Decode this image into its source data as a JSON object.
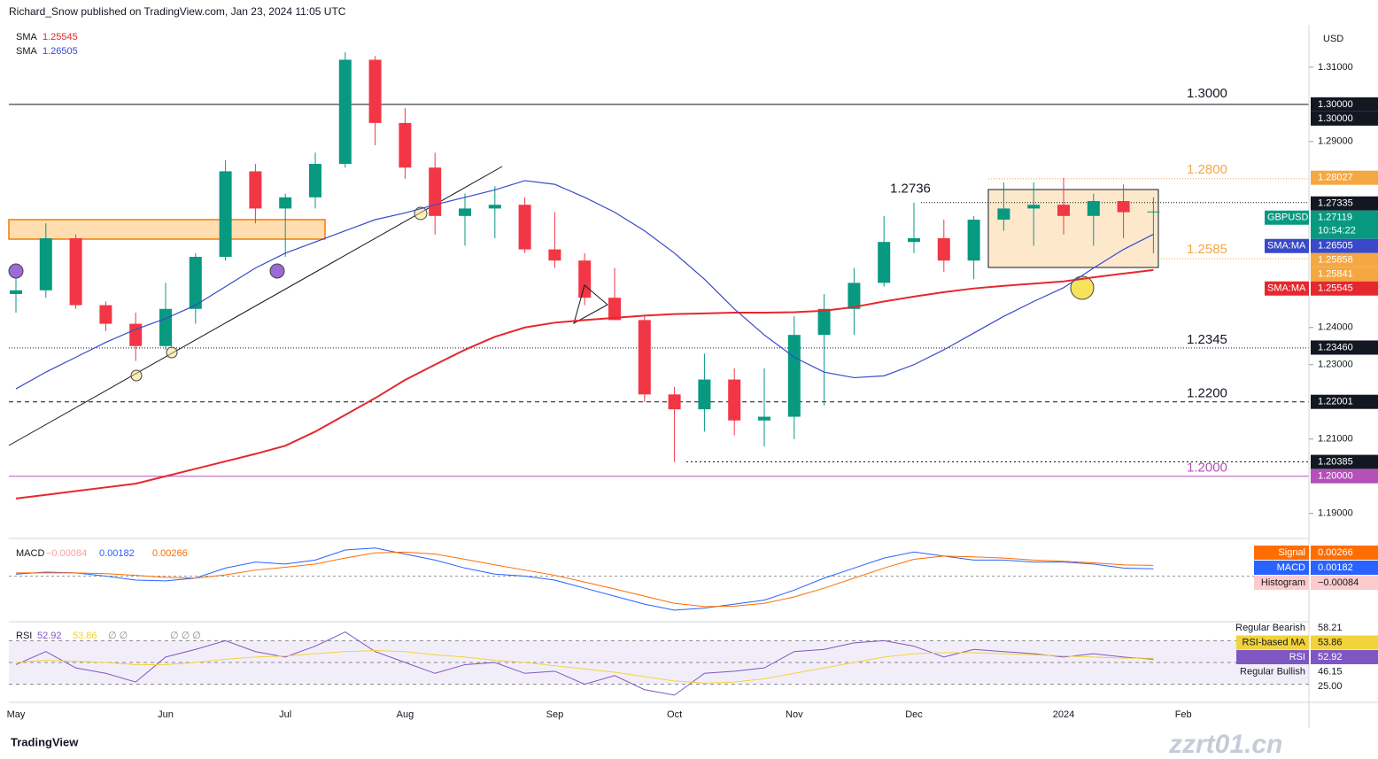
{
  "header": "Richard_Snow published on TradingView.com, Jan 23, 2024 11:05 UTC",
  "footer": "TradingView",
  "watermark": "zzrt01.cn",
  "currency": "USD",
  "chart_data": {
    "type": "candlestick",
    "up_color": "#089981",
    "down_color": "#f23645",
    "categories": [
      "May",
      null,
      null,
      null,
      null,
      "Jun",
      null,
      null,
      null,
      "Jul",
      null,
      null,
      null,
      "Aug",
      null,
      null,
      null,
      null,
      "Sep",
      null,
      null,
      null,
      "Oct",
      null,
      null,
      null,
      "Nov",
      null,
      null,
      null,
      "Dec",
      null,
      null,
      null,
      null,
      "2024",
      null,
      null,
      null,
      "Feb"
    ],
    "open": [
      1.249,
      1.25,
      1.264,
      1.246,
      1.241,
      1.235,
      1.245,
      1.259,
      1.282,
      1.272,
      1.275,
      1.284,
      1.312,
      1.295,
      1.283,
      1.27,
      1.272,
      1.273,
      1.261,
      1.258,
      1.248,
      1.242,
      1.222,
      1.218,
      1.226,
      1.215,
      1.216,
      1.238,
      1.245,
      1.252,
      1.263,
      1.264,
      1.258,
      1.269,
      1.272,
      1.273,
      1.27,
      1.274,
      1.271,
      null
    ],
    "high": [
      1.254,
      1.268,
      1.265,
      1.247,
      1.244,
      1.252,
      1.26,
      1.285,
      1.284,
      1.276,
      1.287,
      1.314,
      1.313,
      1.299,
      1.287,
      1.276,
      1.278,
      1.275,
      1.271,
      1.26,
      1.256,
      1.243,
      1.224,
      1.233,
      1.229,
      1.229,
      1.243,
      1.249,
      1.256,
      1.27,
      1.2736,
      1.269,
      1.27,
      1.279,
      1.279,
      1.28027,
      1.276,
      1.2785,
      1.275,
      null
    ],
    "low": [
      1.244,
      1.248,
      1.245,
      1.239,
      1.231,
      1.234,
      1.241,
      1.258,
      1.268,
      1.259,
      1.272,
      1.283,
      1.289,
      1.28,
      1.265,
      1.262,
      1.264,
      1.26,
      1.256,
      1.246,
      1.242,
      1.22,
      1.20385,
      1.212,
      1.211,
      1.208,
      1.21,
      1.219,
      1.238,
      1.251,
      1.26,
      1.255,
      1.253,
      1.266,
      1.262,
      1.265,
      1.262,
      1.264,
      1.26,
      null
    ],
    "close": [
      1.25,
      1.264,
      1.246,
      1.241,
      1.235,
      1.245,
      1.259,
      1.282,
      1.272,
      1.275,
      1.284,
      1.312,
      1.295,
      1.283,
      1.27,
      1.272,
      1.273,
      1.261,
      1.258,
      1.248,
      1.242,
      1.222,
      1.218,
      1.226,
      1.215,
      1.216,
      1.238,
      1.245,
      1.252,
      1.263,
      1.264,
      1.258,
      1.269,
      1.272,
      1.273,
      1.27,
      1.274,
      1.271,
      1.27119,
      null
    ],
    "series": [
      {
        "name": "SMA",
        "color": "#e5282e",
        "legend_label": "1.25545",
        "values": [
          1.194,
          1.195,
          1.196,
          1.197,
          1.198,
          1.2,
          1.202,
          1.204,
          1.206,
          1.2082,
          1.212,
          1.2165,
          1.221,
          1.2259,
          1.23,
          1.234,
          1.2375,
          1.24,
          1.2413,
          1.242,
          1.2426,
          1.2432,
          1.2436,
          1.2438,
          1.244,
          1.244,
          1.2441,
          1.2445,
          1.2455,
          1.247,
          1.2483,
          1.2495,
          1.2505,
          1.2512,
          1.2518,
          1.2524,
          1.2535,
          1.2545,
          1.25545,
          null
        ]
      },
      {
        "name": "SMA",
        "color": "#3949c8",
        "legend_label": "1.26505",
        "values": [
          1.2235,
          1.228,
          1.232,
          1.236,
          1.2395,
          1.2424,
          1.246,
          1.251,
          1.256,
          1.26,
          1.263,
          1.266,
          1.269,
          1.2708,
          1.273,
          1.275,
          1.277,
          1.2795,
          1.2785,
          1.275,
          1.271,
          1.266,
          1.26,
          1.253,
          1.245,
          1.238,
          1.232,
          1.228,
          1.2265,
          1.227,
          1.23,
          1.234,
          1.2385,
          1.243,
          1.247,
          1.2507,
          1.256,
          1.261,
          1.26505,
          null
        ]
      }
    ],
    "ylim": [
      1.1835,
      1.3214
    ],
    "yticks": [
      {
        "value": 1.31,
        "label": "1.31000"
      },
      {
        "value": 1.29,
        "label": "1.29000"
      },
      {
        "value": 1.24,
        "label": "1.24000"
      },
      {
        "value": 1.23,
        "label": "1.23000"
      },
      {
        "value": 1.21,
        "label": "1.21000"
      },
      {
        "value": 1.19,
        "label": "1.19000"
      }
    ],
    "levels": [
      {
        "value": 1.3,
        "label": "1.3000",
        "color": "#131722",
        "style": "solid"
      },
      {
        "value": 1.28,
        "label": "1.2800",
        "color": "#f5a742",
        "style": "dot"
      },
      {
        "value": 1.2736,
        "label": "1.2736",
        "color": "#131722",
        "style": "dot"
      },
      {
        "value": 1.2585,
        "label": "1.2585",
        "color": "#f5a742",
        "style": "dot"
      },
      {
        "value": 1.2345,
        "label": "1.2345",
        "color": "#131722",
        "style": "dot"
      },
      {
        "value": 1.22,
        "label": "1.2200",
        "color": "#131722",
        "style": "dash"
      },
      {
        "value": 1.2,
        "label": "1.2000",
        "color": "#b550b8",
        "style": "solid"
      }
    ],
    "price_labels": [
      {
        "value": 1.3,
        "label": "1.30000",
        "color": "#131722"
      },
      {
        "value": 1.3,
        "label": "1.30000",
        "color": "#131722"
      },
      {
        "value": 1.28027,
        "label": "1.28027",
        "color": "#f5a742"
      },
      {
        "value": 1.27335,
        "label": "1.27335",
        "color": "#131722"
      },
      {
        "value": 1.27119,
        "label": "1.27119",
        "color": "#089981",
        "tag": "GBPUSD",
        "sub": "10:54:22"
      },
      {
        "value": 1.26505,
        "label": "1.26505",
        "color": "#3949c8",
        "tag": "SMA:MA"
      },
      {
        "value": 1.25858,
        "label": "1.25858",
        "color": "#f5a742"
      },
      {
        "value": 1.25841,
        "label": "1.25841",
        "color": "#f5a742"
      },
      {
        "value": 1.25545,
        "label": "1.25545",
        "color": "#e5282e",
        "tag": "SMA:MA"
      },
      {
        "value": 1.2346,
        "label": "1.23460",
        "color": "#131722"
      },
      {
        "value": 1.22001,
        "label": "1.22001",
        "color": "#131722"
      },
      {
        "value": 1.20385,
        "label": "1.20385",
        "color": "#131722"
      },
      {
        "value": 1.2,
        "label": "1.20000",
        "color": "#b550b8"
      }
    ]
  },
  "macd": {
    "type": "line",
    "name": "MACD",
    "legend": [
      "−0.00084",
      "0.00182",
      "0.00266"
    ],
    "ylim": [
      -0.0105,
      0.0085
    ],
    "series": [
      {
        "name": "MACD",
        "color": "#2962ff",
        "values": [
          0.0005,
          0.001,
          0.0008,
          0,
          -0.001,
          -0.0012,
          -0.0005,
          0.002,
          0.0035,
          0.003,
          0.004,
          0.0065,
          0.007,
          0.0055,
          0.004,
          0.002,
          0.0005,
          0,
          -0.001,
          -0.003,
          -0.005,
          -0.007,
          -0.0085,
          -0.008,
          -0.007,
          -0.006,
          -0.0035,
          -0.0005,
          0.002,
          0.0045,
          0.006,
          0.005,
          0.004,
          0.004,
          0.0035,
          0.0035,
          0.003,
          0.002,
          0.00182,
          null
        ]
      },
      {
        "name": "Signal",
        "color": "#ff6d00",
        "values": [
          0.0008,
          0.0008,
          0.0008,
          0.0006,
          0.0002,
          -0.0003,
          -0.0005,
          0.0003,
          0.0015,
          0.0022,
          0.003,
          0.0045,
          0.0058,
          0.006,
          0.0055,
          0.0042,
          0.0028,
          0.0015,
          0.0002,
          -0.0015,
          -0.0032,
          -0.005,
          -0.0068,
          -0.0076,
          -0.0075,
          -0.0068,
          -0.0052,
          -0.003,
          -0.0005,
          0.002,
          0.0042,
          0.005,
          0.0048,
          0.0045,
          0.004,
          0.0037,
          0.0033,
          0.0028,
          0.00266,
          null
        ]
      }
    ],
    "badges": [
      {
        "name": "Signal",
        "label": "0.00266",
        "color": "#ff6d00"
      },
      {
        "name": "MACD",
        "label": "0.00182",
        "color": "#2962ff"
      },
      {
        "name": "Histogram",
        "label": "−0.00084",
        "color": "#fccbcd"
      }
    ]
  },
  "rsi": {
    "type": "line",
    "name": "RSI",
    "legend": [
      "52.92",
      "53.86",
      "∅ ∅",
      "∅ ∅ ∅"
    ],
    "ylim": [
      15,
      85
    ],
    "bands": [
      70,
      50,
      30
    ],
    "series": [
      {
        "name": "RSI",
        "color": "#7e57c2",
        "values": [
          48,
          60,
          45,
          40,
          32,
          55,
          62,
          70,
          60,
          55,
          65,
          78,
          60,
          50,
          40,
          48,
          50,
          40,
          42,
          30,
          38,
          25,
          20,
          40,
          42,
          45,
          60,
          62,
          68,
          70,
          65,
          55,
          62,
          60,
          58,
          55,
          58,
          55,
          52.92,
          null
        ]
      },
      {
        "name": "RSI-based MA",
        "color": "#f2d33b",
        "values": [
          50,
          52,
          51,
          50,
          48,
          48,
          50,
          53,
          55,
          56,
          58,
          60,
          61,
          60,
          57,
          55,
          52,
          50,
          47,
          44,
          41,
          37,
          33,
          31,
          32,
          35,
          40,
          45,
          50,
          55,
          58,
          59,
          59,
          58,
          57,
          56,
          55,
          54,
          53.86,
          null
        ]
      }
    ],
    "badges": [
      {
        "name": "Regular Bearish",
        "label": "58.21"
      },
      {
        "name": "RSI-based MA",
        "label": "53.86"
      },
      {
        "name": "RSI",
        "label": "52.92"
      },
      {
        "name": "Regular Bullish",
        "label": "46.15"
      },
      {
        "name": "",
        "label": "25.00"
      }
    ]
  }
}
